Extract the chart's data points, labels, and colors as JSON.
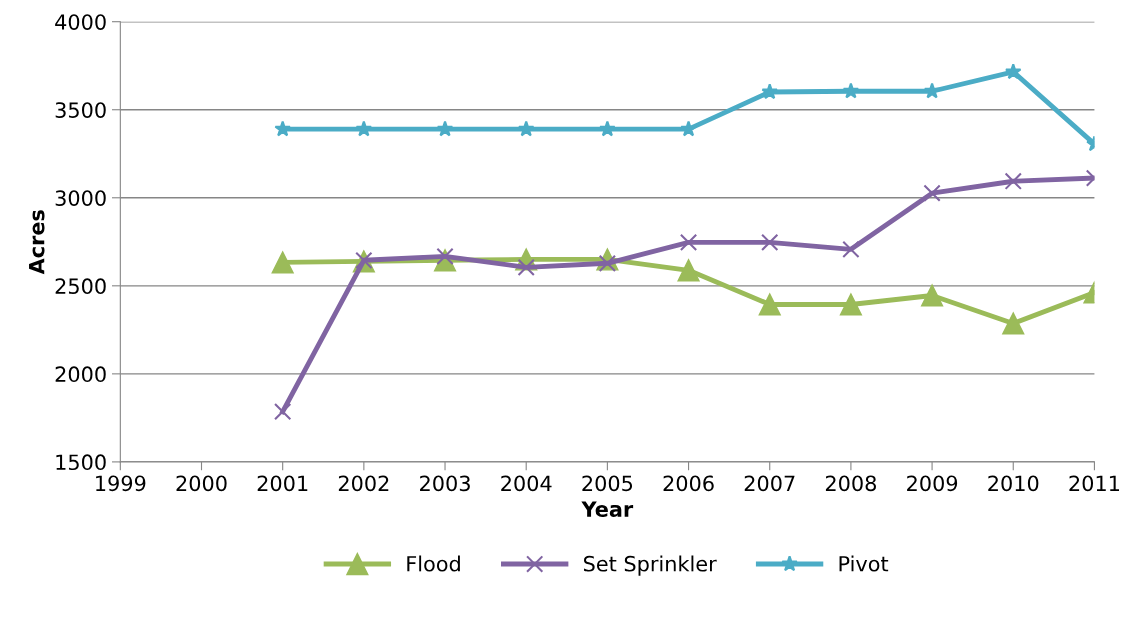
{
  "chart_data": {
    "type": "line",
    "xlabel": "Year",
    "ylabel": "Acres",
    "x": [
      2001,
      2002,
      2003,
      2004,
      2005,
      2006,
      2007,
      2008,
      2009,
      2010,
      2011
    ],
    "series": [
      {
        "name": "Flood",
        "color": "#9bbb59",
        "marker": "triangle",
        "values": [
          2633,
          2639,
          2645,
          2650,
          2650,
          2588,
          2394,
          2394,
          2445,
          2286,
          2462
        ]
      },
      {
        "name": "Set Sprinkler",
        "color": "#8064a2",
        "marker": "cross",
        "values": [
          1785,
          2645,
          2667,
          2605,
          2628,
          2747,
          2747,
          2707,
          3026,
          3094,
          3112
        ]
      },
      {
        "name": "Pivot",
        "color": "#4bacc6",
        "marker": "star",
        "values": [
          3390,
          3390,
          3390,
          3390,
          3390,
          3390,
          3601,
          3605,
          3605,
          3715,
          3305
        ]
      }
    ],
    "xlim": [
      1999,
      2011
    ],
    "xticks": [
      1999,
      2000,
      2001,
      2002,
      2003,
      2004,
      2005,
      2006,
      2007,
      2008,
      2009,
      2010,
      2011
    ],
    "ylim": [
      1500,
      4000
    ],
    "yticks": [
      1500,
      2000,
      2500,
      3000,
      3500,
      4000
    ],
    "grid": "y",
    "legend": "bottom",
    "line_style": "solid"
  }
}
